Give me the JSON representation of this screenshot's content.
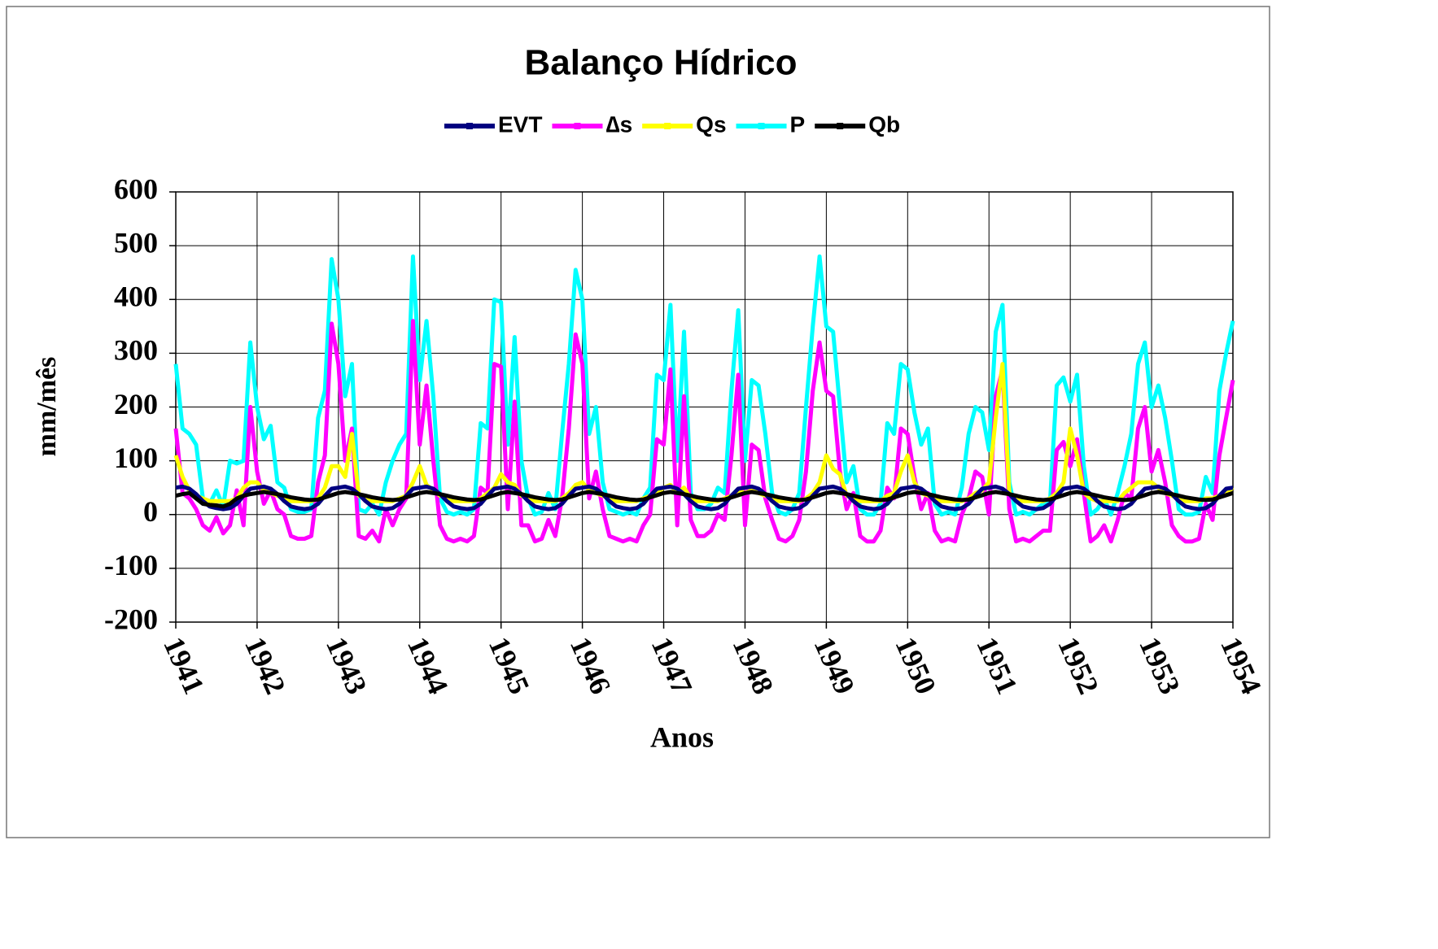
{
  "chart_data": {
    "type": "line",
    "title": "Balanço Hídrico",
    "ylabel": "mm/mês",
    "xlabel": "Anos",
    "categories": [
      "1941",
      null,
      null,
      null,
      null,
      null,
      null,
      null,
      null,
      null,
      null,
      null,
      "1942",
      null,
      null,
      null,
      null,
      null,
      null,
      null,
      null,
      null,
      null,
      null,
      "1943",
      null,
      null,
      null,
      null,
      null,
      null,
      null,
      null,
      null,
      null,
      null,
      "1944",
      null,
      null,
      null,
      null,
      null,
      null,
      null,
      null,
      null,
      null,
      null,
      "1945",
      null,
      null,
      null,
      null,
      null,
      null,
      null,
      null,
      null,
      null,
      null,
      "1946",
      null,
      null,
      null,
      null,
      null,
      null,
      null,
      null,
      null,
      null,
      null,
      "1947",
      null,
      null,
      null,
      null,
      null,
      null,
      null,
      null,
      null,
      null,
      null,
      "1948",
      null,
      null,
      null,
      null,
      null,
      null,
      null,
      null,
      null,
      null,
      null,
      "1949",
      null,
      null,
      null,
      null,
      null,
      null,
      null,
      null,
      null,
      null,
      null,
      "1950",
      null,
      null,
      null,
      null,
      null,
      null,
      null,
      null,
      null,
      null,
      null,
      "1951",
      null,
      null,
      null,
      null,
      null,
      null,
      null,
      null,
      null,
      null,
      null,
      "1952",
      null,
      null,
      null,
      null,
      null,
      null,
      null,
      null,
      null,
      null,
      null,
      "1953",
      null,
      null,
      null,
      null,
      null,
      null,
      null,
      null,
      null,
      null,
      null,
      "1954"
    ],
    "series": [
      {
        "name": "EVT",
        "color": "#000080",
        "values": [
          50,
          52,
          48,
          38,
          25,
          15,
          12,
          10,
          12,
          20,
          35,
          48,
          50,
          52,
          48,
          38,
          25,
          15,
          12,
          10,
          12,
          20,
          35,
          48,
          50,
          52,
          48,
          38,
          25,
          15,
          12,
          10,
          12,
          20,
          35,
          48,
          50,
          52,
          48,
          38,
          25,
          15,
          12,
          10,
          12,
          20,
          35,
          48,
          50,
          52,
          48,
          38,
          25,
          15,
          12,
          10,
          12,
          20,
          35,
          48,
          50,
          52,
          48,
          38,
          25,
          15,
          12,
          10,
          12,
          20,
          35,
          48,
          50,
          52,
          48,
          38,
          25,
          15,
          12,
          10,
          12,
          20,
          35,
          48,
          50,
          52,
          48,
          38,
          25,
          15,
          12,
          10,
          12,
          20,
          35,
          48,
          50,
          52,
          48,
          38,
          25,
          15,
          12,
          10,
          12,
          20,
          35,
          48,
          50,
          52,
          48,
          38,
          25,
          15,
          12,
          10,
          12,
          20,
          35,
          48,
          50,
          52,
          48,
          38,
          25,
          15,
          12,
          10,
          12,
          20,
          35,
          48,
          50,
          52,
          48,
          38,
          25,
          15,
          12,
          10,
          12,
          20,
          35,
          48,
          50,
          52,
          48,
          38,
          25,
          15,
          12,
          10,
          12,
          20,
          35,
          48,
          50
        ]
      },
      {
        "name": "∆s",
        "color": "#ff00ff",
        "values": [
          160,
          40,
          30,
          10,
          -20,
          -30,
          -5,
          -35,
          -20,
          45,
          -20,
          200,
          80,
          20,
          45,
          10,
          0,
          -40,
          -45,
          -45,
          -40,
          60,
          110,
          355,
          280,
          100,
          160,
          -40,
          -45,
          -30,
          -50,
          10,
          -20,
          10,
          30,
          360,
          130,
          240,
          100,
          -20,
          -45,
          -50,
          -45,
          -50,
          -40,
          50,
          40,
          280,
          275,
          10,
          210,
          -20,
          -20,
          -50,
          -45,
          -10,
          -40,
          30,
          160,
          335,
          280,
          30,
          80,
          10,
          -40,
          -45,
          -50,
          -45,
          -50,
          -20,
          0,
          140,
          130,
          270,
          -20,
          220,
          -10,
          -40,
          -40,
          -30,
          0,
          -10,
          110,
          260,
          -20,
          130,
          120,
          30,
          -10,
          -45,
          -50,
          -40,
          -10,
          80,
          230,
          320,
          230,
          220,
          80,
          10,
          40,
          -40,
          -50,
          -50,
          -30,
          50,
          30,
          160,
          150,
          70,
          10,
          40,
          -30,
          -50,
          -45,
          -50,
          0,
          30,
          80,
          70,
          0,
          220,
          270,
          10,
          -50,
          -45,
          -50,
          -40,
          -30,
          -30,
          120,
          135,
          90,
          140,
          40,
          -50,
          -40,
          -20,
          -50,
          -10,
          40,
          30,
          160,
          200,
          80,
          120,
          60,
          -20,
          -40,
          -50,
          -50,
          -45,
          20,
          -10,
          110,
          180,
          250
        ]
      },
      {
        "name": "Qs",
        "color": "#ffff00",
        "values": [
          110,
          70,
          45,
          35,
          30,
          25,
          25,
          25,
          25,
          30,
          50,
          60,
          60,
          45,
          40,
          35,
          30,
          25,
          25,
          25,
          25,
          30,
          50,
          90,
          90,
          70,
          150,
          35,
          30,
          25,
          25,
          25,
          25,
          30,
          35,
          60,
          90,
          55,
          45,
          35,
          30,
          25,
          25,
          25,
          25,
          30,
          40,
          50,
          75,
          60,
          55,
          35,
          30,
          25,
          25,
          25,
          25,
          30,
          40,
          55,
          60,
          45,
          40,
          35,
          30,
          25,
          25,
          25,
          25,
          30,
          35,
          40,
          50,
          55,
          40,
          50,
          30,
          25,
          25,
          25,
          25,
          30,
          35,
          45,
          40,
          45,
          40,
          35,
          30,
          25,
          25,
          25,
          25,
          30,
          40,
          60,
          110,
          85,
          75,
          35,
          30,
          25,
          25,
          25,
          25,
          35,
          40,
          80,
          110,
          60,
          40,
          35,
          30,
          25,
          25,
          25,
          25,
          30,
          40,
          45,
          60,
          180,
          280,
          40,
          30,
          25,
          25,
          25,
          25,
          30,
          40,
          60,
          160,
          110,
          40,
          30,
          25,
          25,
          25,
          25,
          40,
          50,
          60,
          60,
          60,
          50,
          40,
          35,
          30,
          25,
          25,
          25,
          30,
          30,
          35,
          40,
          50
        ]
      },
      {
        "name": "P",
        "color": "#00ffff",
        "values": [
          280,
          160,
          150,
          130,
          30,
          20,
          45,
          15,
          100,
          95,
          100,
          320,
          200,
          140,
          165,
          60,
          50,
          10,
          5,
          5,
          10,
          180,
          230,
          475,
          400,
          220,
          280,
          10,
          5,
          20,
          0,
          60,
          100,
          130,
          150,
          480,
          250,
          360,
          220,
          30,
          5,
          0,
          5,
          0,
          10,
          170,
          160,
          400,
          395,
          130,
          330,
          100,
          30,
          0,
          5,
          40,
          10,
          150,
          280,
          455,
          400,
          150,
          200,
          60,
          10,
          5,
          0,
          5,
          0,
          30,
          50,
          260,
          250,
          390,
          100,
          340,
          40,
          10,
          10,
          20,
          50,
          40,
          230,
          380,
          100,
          250,
          240,
          150,
          40,
          5,
          0,
          10,
          40,
          200,
          350,
          480,
          350,
          340,
          200,
          60,
          90,
          10,
          0,
          0,
          20,
          170,
          150,
          280,
          270,
          190,
          130,
          160,
          20,
          0,
          5,
          0,
          50,
          150,
          200,
          190,
          120,
          340,
          390,
          60,
          0,
          5,
          0,
          10,
          20,
          20,
          240,
          255,
          210,
          260,
          90,
          0,
          10,
          30,
          0,
          40,
          90,
          150,
          280,
          320,
          200,
          240,
          180,
          100,
          10,
          0,
          0,
          5,
          70,
          40,
          230,
          300,
          360
        ]
      },
      {
        "name": "Qb",
        "color": "#000000",
        "values": [
          35,
          38,
          40,
          30,
          20,
          18,
          17,
          15,
          20,
          30,
          35,
          38,
          40,
          42,
          40,
          38,
          35,
          32,
          30,
          28,
          27,
          28,
          32,
          36,
          40,
          42,
          40,
          38,
          35,
          32,
          30,
          28,
          27,
          28,
          32,
          36,
          40,
          42,
          40,
          38,
          35,
          32,
          30,
          28,
          27,
          28,
          32,
          36,
          40,
          42,
          40,
          38,
          35,
          32,
          30,
          28,
          27,
          28,
          32,
          36,
          40,
          42,
          40,
          38,
          35,
          32,
          30,
          28,
          27,
          28,
          32,
          36,
          40,
          42,
          40,
          38,
          35,
          32,
          30,
          28,
          27,
          28,
          32,
          36,
          40,
          42,
          40,
          38,
          35,
          32,
          30,
          28,
          27,
          28,
          32,
          36,
          40,
          42,
          40,
          38,
          35,
          32,
          30,
          28,
          27,
          28,
          32,
          36,
          40,
          42,
          40,
          38,
          35,
          32,
          30,
          28,
          27,
          28,
          32,
          36,
          40,
          42,
          40,
          38,
          35,
          32,
          30,
          28,
          27,
          28,
          32,
          36,
          40,
          42,
          40,
          38,
          35,
          32,
          30,
          28,
          27,
          28,
          32,
          36,
          40,
          42,
          40,
          38,
          35,
          32,
          30,
          28,
          27,
          28,
          32,
          36,
          40
        ]
      }
    ],
    "ylim": [
      -200,
      600
    ],
    "yticks": [
      -200,
      -100,
      0,
      100,
      200,
      300,
      400,
      500,
      600
    ],
    "grid": true,
    "legend": "top"
  }
}
